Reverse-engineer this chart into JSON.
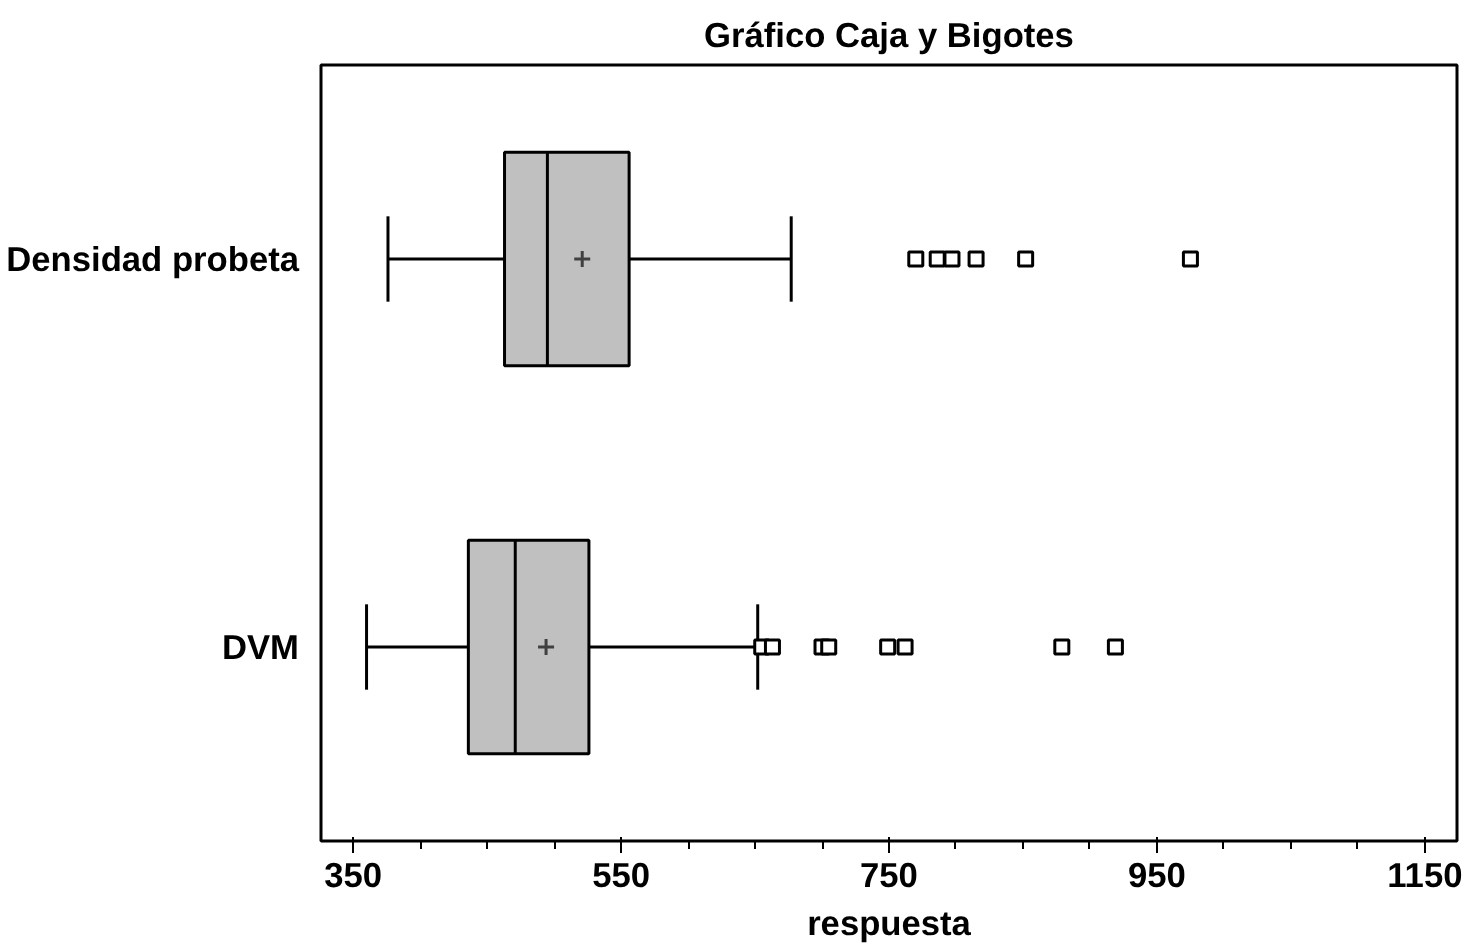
{
  "chart_data": {
    "type": "box",
    "orientation": "horizontal",
    "title": "Gráfico Caja y Bigotes",
    "xlabel": "respuesta",
    "categories": [
      "Densidad probeta",
      "DVM"
    ],
    "boxes": [
      {
        "low": 376,
        "q1": 463,
        "median": 495,
        "q3": 556,
        "high": 677,
        "mean": 521,
        "outliers": [
          770,
          786,
          797,
          815,
          852,
          975
        ]
      },
      {
        "low": 360,
        "q1": 436,
        "median": 471,
        "q3": 526,
        "high": 652,
        "mean": 494,
        "outliers": [
          655,
          663,
          700,
          705,
          749,
          762,
          879,
          919
        ]
      }
    ],
    "color": "#c0c0c0",
    "marker": "square",
    "xlim": [
      326,
      1174
    ],
    "xticks": [
      350,
      550,
      750,
      950,
      1150
    ],
    "grid": false
  }
}
